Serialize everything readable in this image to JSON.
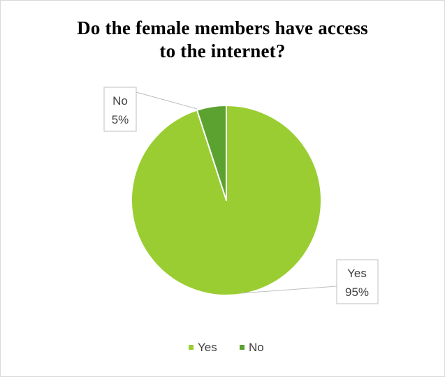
{
  "chart_data": {
    "type": "pie",
    "title_lines": [
      "Do the female members have access",
      "to the internet?"
    ],
    "slices": [
      {
        "name": "Yes",
        "value": 95,
        "label": "95%",
        "color": "#9acd32"
      },
      {
        "name": "No",
        "value": 5,
        "label": "5%",
        "color": "#5ba231"
      }
    ],
    "legend": {
      "position": "bottom",
      "entries": [
        "Yes",
        "No"
      ]
    }
  }
}
